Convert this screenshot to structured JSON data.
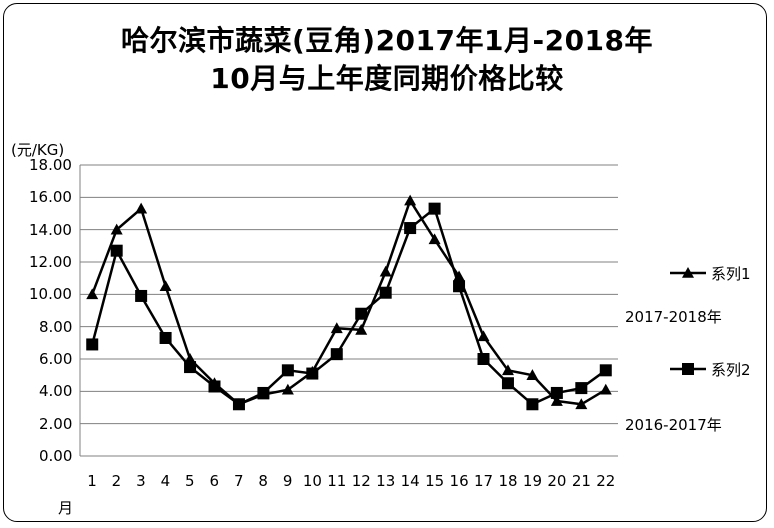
{
  "title_line1": "哈尔滨市蔬菜(豆角)2017年1月-2018年",
  "title_line2": "10月与上年度同期价格比较",
  "y_unit": "(元/KG)",
  "x_unit": "月",
  "legend": {
    "series1_label": "系列1",
    "series1_desc": "2017-2018年",
    "series2_label": "系列2",
    "series2_desc": "2016-2017年"
  },
  "chart_data": {
    "type": "line",
    "categories": [
      "1",
      "2",
      "3",
      "4",
      "5",
      "6",
      "7",
      "8",
      "9",
      "10",
      "11",
      "12",
      "13",
      "14",
      "15",
      "16",
      "17",
      "18",
      "19",
      "20",
      "21",
      "22"
    ],
    "ylim": [
      0,
      18
    ],
    "ytick_labels": [
      "0.00",
      "2.00",
      "4.00",
      "6.00",
      "8.00",
      "10.00",
      "12.00",
      "14.00",
      "16.00",
      "18.00"
    ],
    "grid": true,
    "series": [
      {
        "name": "系列1",
        "marker": "triangle",
        "values": [
          10.0,
          14.0,
          15.3,
          10.5,
          6.0,
          4.5,
          3.2,
          3.8,
          4.1,
          5.2,
          7.9,
          7.8,
          11.4,
          15.8,
          13.4,
          11.1,
          7.4,
          5.3,
          5.0,
          3.4,
          3.2,
          4.1
        ]
      },
      {
        "name": "系列2",
        "marker": "square",
        "values": [
          6.9,
          12.7,
          9.9,
          7.3,
          5.5,
          4.3,
          3.2,
          3.9,
          5.3,
          5.1,
          6.3,
          8.8,
          10.1,
          14.1,
          15.3,
          10.5,
          6.0,
          4.5,
          3.2,
          3.9,
          4.2,
          5.3
        ]
      }
    ],
    "colors": {
      "line": "#000000",
      "grid": "#808080"
    }
  }
}
